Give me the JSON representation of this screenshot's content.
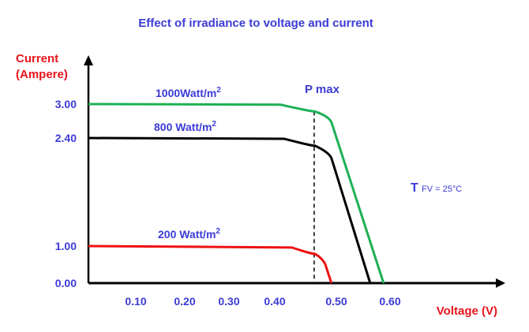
{
  "chart_data": {
    "type": "line",
    "title": "Effect of irradiance to voltage and current",
    "xlabel": "Voltage (V)",
    "ylabel_line1": "Current",
    "ylabel_line2": "(Ampere)",
    "x_ticks": [
      "0.10",
      "0.20",
      "0.30",
      "0.40",
      "0.50",
      "0.60"
    ],
    "y_ticks": [
      "0.00",
      "1.00",
      "2.40",
      "3.00"
    ],
    "xlim": [
      0,
      0.6
    ],
    "ylim": [
      0,
      3.0
    ],
    "grid": false,
    "annotations": {
      "pmax": "P max",
      "pmax_voltage": 0.464,
      "temp_T": "T",
      "temp_rest": "FV = 25°C"
    },
    "series": [
      {
        "label_main": "1000Watt/m",
        "label_sup": "2",
        "color": "#1db054",
        "points": [
          [
            0,
            3.0
          ],
          [
            0.409,
            2.99
          ],
          [
            0.465,
            2.87
          ],
          [
            0.492,
            2.68
          ],
          [
            0.588,
            0
          ]
        ]
      },
      {
        "label_main": "800 Watt/m",
        "label_sup": "2",
        "color": "#000000",
        "points": [
          [
            0,
            2.4
          ],
          [
            0.415,
            2.39
          ],
          [
            0.465,
            2.3
          ],
          [
            0.492,
            2.14
          ],
          [
            0.563,
            0
          ]
        ]
      },
      {
        "label_main": "200 Watt/m",
        "label_sup": "2",
        "color": "#ee1111",
        "points": [
          [
            0,
            1.0
          ],
          [
            0.428,
            0.96
          ],
          [
            0.465,
            0.79
          ],
          [
            0.482,
            0.51
          ],
          [
            0.492,
            0
          ]
        ]
      }
    ],
    "colors": {
      "text_blue": "#3b3bd6",
      "axis_label_red": "#e8141c"
    }
  }
}
